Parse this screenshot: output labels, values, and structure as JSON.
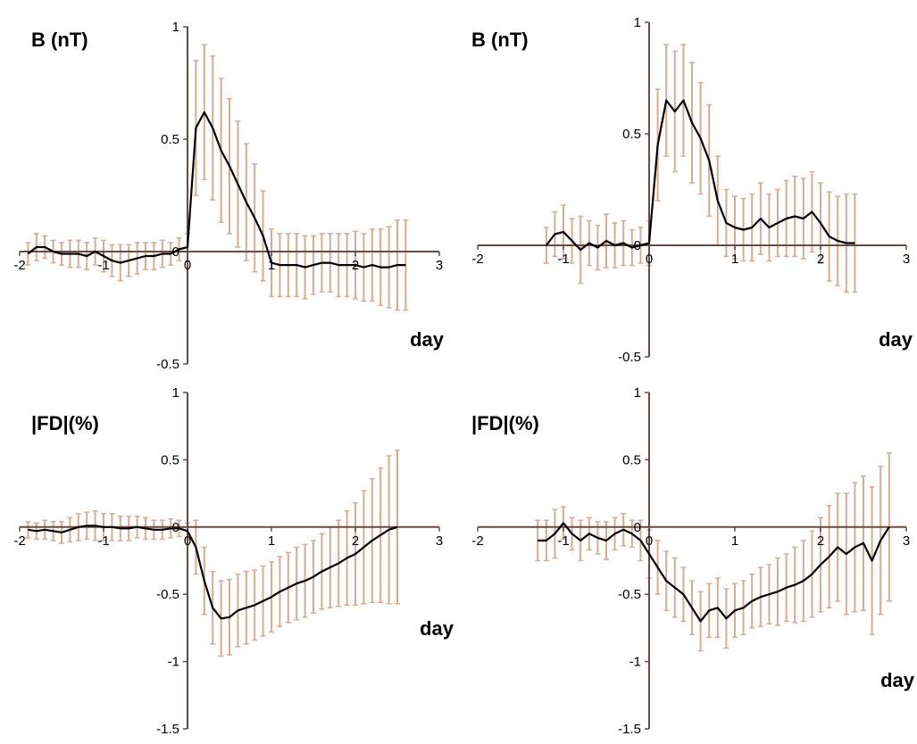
{
  "chart_data": [
    {
      "type": "line",
      "ylabel": "B (nT)",
      "xlabel": "day",
      "axis_color": "#6b4a40",
      "error_color": "#d9ab8f",
      "xlim": [
        -2,
        3
      ],
      "ylim": [
        -0.5,
        1
      ],
      "xticks": [
        -2,
        -1,
        0,
        1,
        2,
        3
      ],
      "yticks": [
        -0.5,
        0,
        0.5,
        1
      ],
      "x": [
        -1.9,
        -1.8,
        -1.7,
        -1.6,
        -1.5,
        -1.4,
        -1.3,
        -1.2,
        -1.1,
        -1.0,
        -0.9,
        -0.8,
        -0.7,
        -0.6,
        -0.5,
        -0.4,
        -0.3,
        -0.2,
        -0.1,
        0.0,
        0.1,
        0.2,
        0.3,
        0.4,
        0.5,
        0.6,
        0.7,
        0.8,
        0.9,
        1.0,
        1.1,
        1.2,
        1.3,
        1.4,
        1.5,
        1.6,
        1.7,
        1.8,
        1.9,
        2.0,
        2.1,
        2.2,
        2.3,
        2.4,
        2.5,
        2.6
      ],
      "series": [
        {
          "color": "#000000",
          "values": [
            -0.01,
            0.02,
            0.02,
            0.0,
            -0.01,
            -0.01,
            -0.01,
            -0.02,
            0.0,
            -0.02,
            -0.04,
            -0.05,
            -0.04,
            -0.03,
            -0.02,
            -0.02,
            -0.01,
            -0.01,
            0.01,
            0.02,
            0.55,
            0.62,
            0.55,
            0.45,
            0.38,
            0.3,
            0.22,
            0.15,
            0.07,
            -0.05,
            -0.06,
            -0.06,
            -0.06,
            -0.07,
            -0.06,
            -0.05,
            -0.05,
            -0.06,
            -0.06,
            -0.06,
            -0.07,
            -0.06,
            -0.07,
            -0.07,
            -0.06,
            -0.06
          ],
          "errors": [
            0.05,
            0.06,
            0.05,
            0.05,
            0.05,
            0.06,
            0.06,
            0.06,
            0.06,
            0.07,
            0.07,
            0.08,
            0.07,
            0.07,
            0.06,
            0.06,
            0.06,
            0.05,
            0.05,
            0.06,
            0.3,
            0.3,
            0.32,
            0.32,
            0.3,
            0.28,
            0.26,
            0.24,
            0.2,
            0.15,
            0.14,
            0.14,
            0.14,
            0.14,
            0.13,
            0.13,
            0.13,
            0.14,
            0.14,
            0.15,
            0.15,
            0.16,
            0.17,
            0.18,
            0.2,
            0.2
          ]
        }
      ]
    },
    {
      "type": "line",
      "ylabel": "B (nT)",
      "xlabel": "day",
      "axis_color": "#6b4a40",
      "error_color": "#d9ab8f",
      "xlim": [
        -2,
        3
      ],
      "ylim": [
        -0.5,
        1
      ],
      "xticks": [
        -2,
        -1,
        0,
        1,
        2,
        3
      ],
      "yticks": [
        -0.5,
        0,
        0.5,
        1
      ],
      "x": [
        -1.2,
        -1.1,
        -1.0,
        -0.9,
        -0.8,
        -0.7,
        -0.6,
        -0.5,
        -0.4,
        -0.3,
        -0.2,
        -0.1,
        0.0,
        0.1,
        0.2,
        0.3,
        0.4,
        0.5,
        0.6,
        0.7,
        0.8,
        0.9,
        1.0,
        1.1,
        1.2,
        1.3,
        1.4,
        1.5,
        1.6,
        1.7,
        1.8,
        1.9,
        2.0,
        2.1,
        2.2,
        2.3,
        2.4
      ],
      "series": [
        {
          "color": "#000000",
          "values": [
            0.0,
            0.05,
            0.06,
            0.02,
            -0.02,
            0.01,
            -0.01,
            0.02,
            0.0,
            0.01,
            -0.01,
            0.0,
            0.01,
            0.45,
            0.65,
            0.6,
            0.65,
            0.55,
            0.48,
            0.38,
            0.2,
            0.1,
            0.08,
            0.07,
            0.08,
            0.12,
            0.08,
            0.1,
            0.12,
            0.13,
            0.12,
            0.15,
            0.1,
            0.04,
            0.02,
            0.01,
            0.01
          ],
          "errors": [
            0.08,
            0.1,
            0.12,
            0.1,
            0.15,
            0.1,
            0.1,
            0.12,
            0.1,
            0.1,
            0.08,
            0.08,
            0.1,
            0.25,
            0.25,
            0.27,
            0.25,
            0.27,
            0.25,
            0.25,
            0.2,
            0.15,
            0.14,
            0.14,
            0.15,
            0.16,
            0.15,
            0.15,
            0.17,
            0.18,
            0.18,
            0.18,
            0.18,
            0.2,
            0.2,
            0.22,
            0.22
          ]
        }
      ]
    },
    {
      "type": "line",
      "ylabel": "|FD|(%)",
      "xlabel": "day",
      "axis_color": "#6b4a40",
      "error_color": "#d9ab8f",
      "xlim": [
        -2,
        3
      ],
      "ylim": [
        -1.5,
        1
      ],
      "xticks": [
        -2,
        -1,
        0,
        1,
        2,
        3
      ],
      "yticks": [
        -1.5,
        -1,
        -0.5,
        0,
        0.5,
        1
      ],
      "x": [
        -1.9,
        -1.8,
        -1.7,
        -1.6,
        -1.5,
        -1.4,
        -1.3,
        -1.2,
        -1.1,
        -1.0,
        -0.9,
        -0.8,
        -0.7,
        -0.6,
        -0.5,
        -0.4,
        -0.3,
        -0.2,
        -0.1,
        0.0,
        0.1,
        0.2,
        0.3,
        0.4,
        0.5,
        0.6,
        0.7,
        0.8,
        0.9,
        1.0,
        1.1,
        1.2,
        1.3,
        1.4,
        1.5,
        1.6,
        1.7,
        1.8,
        1.9,
        2.0,
        2.1,
        2.2,
        2.3,
        2.4,
        2.5
      ],
      "series": [
        {
          "color": "#000000",
          "values": [
            -0.02,
            -0.03,
            -0.02,
            -0.03,
            -0.04,
            -0.02,
            0.0,
            0.01,
            0.01,
            0.0,
            0.0,
            -0.01,
            -0.01,
            0.0,
            -0.01,
            -0.02,
            -0.02,
            -0.01,
            -0.01,
            -0.03,
            -0.15,
            -0.4,
            -0.6,
            -0.68,
            -0.67,
            -0.62,
            -0.6,
            -0.58,
            -0.55,
            -0.52,
            -0.48,
            -0.45,
            -0.42,
            -0.4,
            -0.37,
            -0.33,
            -0.3,
            -0.27,
            -0.23,
            -0.2,
            -0.15,
            -0.1,
            -0.06,
            -0.02,
            0.0
          ],
          "errors": [
            0.06,
            0.06,
            0.07,
            0.07,
            0.08,
            0.09,
            0.1,
            0.1,
            0.11,
            0.1,
            0.1,
            0.09,
            0.09,
            0.08,
            0.08,
            0.07,
            0.07,
            0.07,
            0.06,
            0.06,
            0.2,
            0.25,
            0.27,
            0.28,
            0.28,
            0.27,
            0.27,
            0.26,
            0.26,
            0.26,
            0.26,
            0.26,
            0.27,
            0.27,
            0.27,
            0.28,
            0.3,
            0.32,
            0.35,
            0.38,
            0.42,
            0.46,
            0.5,
            0.55,
            0.57
          ]
        }
      ]
    },
    {
      "type": "line",
      "ylabel": "|FD|(%)",
      "xlabel": "day",
      "axis_color": "#6b4a40",
      "error_color": "#d9ab8f",
      "xlim": [
        -2,
        3
      ],
      "ylim": [
        -1.5,
        1
      ],
      "xticks": [
        -2,
        -1,
        0,
        1,
        2,
        3
      ],
      "yticks": [
        -1.5,
        -1,
        -0.5,
        0,
        0.5,
        1
      ],
      "x": [
        -1.3,
        -1.2,
        -1.1,
        -1.0,
        -0.9,
        -0.8,
        -0.7,
        -0.6,
        -0.5,
        -0.4,
        -0.3,
        -0.2,
        -0.1,
        0.0,
        0.1,
        0.2,
        0.3,
        0.4,
        0.5,
        0.6,
        0.7,
        0.8,
        0.9,
        1.0,
        1.1,
        1.2,
        1.3,
        1.4,
        1.5,
        1.6,
        1.7,
        1.8,
        1.9,
        2.0,
        2.1,
        2.2,
        2.3,
        2.4,
        2.5,
        2.6,
        2.7,
        2.8
      ],
      "series": [
        {
          "color": "#000000",
          "values": [
            -0.1,
            -0.1,
            -0.05,
            0.03,
            -0.05,
            -0.1,
            -0.05,
            -0.08,
            -0.1,
            -0.05,
            -0.02,
            -0.05,
            -0.1,
            -0.2,
            -0.3,
            -0.4,
            -0.45,
            -0.5,
            -0.6,
            -0.7,
            -0.62,
            -0.6,
            -0.68,
            -0.62,
            -0.6,
            -0.55,
            -0.52,
            -0.5,
            -0.48,
            -0.45,
            -0.43,
            -0.4,
            -0.35,
            -0.28,
            -0.22,
            -0.15,
            -0.2,
            -0.15,
            -0.12,
            -0.25,
            -0.1,
            0.0
          ],
          "errors": [
            0.15,
            0.15,
            0.18,
            0.12,
            0.12,
            0.15,
            0.12,
            0.12,
            0.14,
            0.12,
            0.12,
            0.1,
            0.15,
            0.18,
            0.2,
            0.22,
            0.22,
            0.2,
            0.2,
            0.22,
            0.2,
            0.22,
            0.22,
            0.2,
            0.2,
            0.2,
            0.22,
            0.22,
            0.25,
            0.25,
            0.28,
            0.3,
            0.32,
            0.35,
            0.38,
            0.4,
            0.45,
            0.48,
            0.5,
            0.55,
            0.55,
            0.55
          ]
        }
      ]
    }
  ]
}
